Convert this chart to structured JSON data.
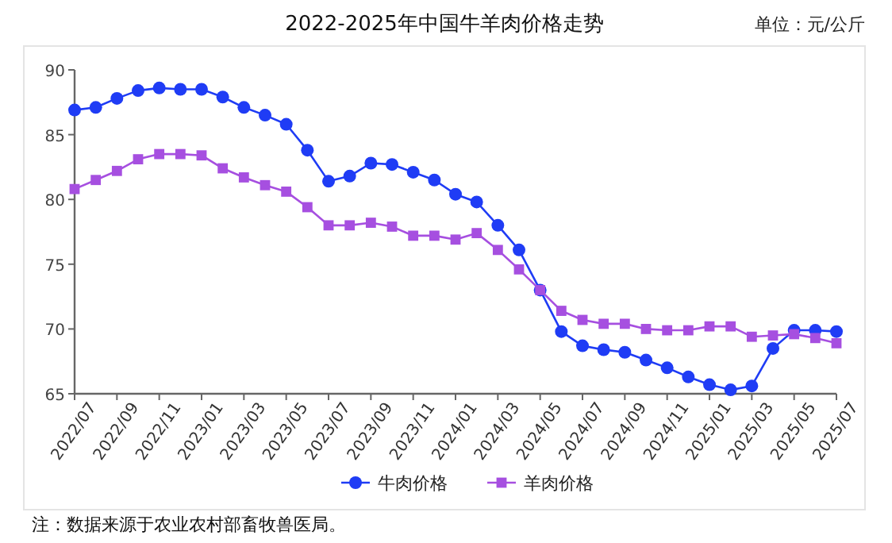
{
  "chart_data": {
    "type": "line",
    "title": "2022-2025年中国牛羊肉价格走势",
    "subtitle": "单位：元/公斤",
    "annotations": [
      "注：数据来源于农业农村部畜牧兽医局。"
    ],
    "categories": [
      "2022/07",
      null,
      "2022/09",
      null,
      "2022/11",
      null,
      "2023/01",
      null,
      "2023/03",
      null,
      "2023/05",
      null,
      "2023/07",
      null,
      "2023/09",
      null,
      "2023/11",
      null,
      "2024/01",
      null,
      "2024/03",
      null,
      "2024/05",
      null,
      "2024/07",
      null,
      "2024/09",
      null,
      "2024/11",
      null,
      "2025/01",
      null,
      "2025/03",
      null,
      "2025/05",
      null,
      "2025/07"
    ],
    "ylim": [
      65,
      90
    ],
    "yticks": [
      65,
      70,
      75,
      80,
      85,
      90
    ],
    "grid": false,
    "legend": "bottom",
    "series": [
      {
        "name": "牛肉价格",
        "color": "#1f3cf5",
        "marker": "circle",
        "values": [
          86.9,
          87.1,
          87.8,
          88.4,
          88.6,
          88.5,
          88.5,
          87.9,
          87.1,
          86.5,
          85.8,
          83.8,
          81.4,
          81.8,
          82.8,
          82.7,
          82.1,
          81.5,
          80.4,
          79.8,
          78.0,
          76.1,
          73.0,
          69.8,
          68.7,
          68.4,
          68.2,
          67.6,
          67.0,
          66.3,
          65.7,
          65.3,
          65.6,
          68.5,
          69.9,
          69.9,
          69.8
        ]
      },
      {
        "name": "羊肉价格",
        "color": "#a64fe0",
        "marker": "square",
        "values": [
          80.8,
          81.5,
          82.2,
          83.1,
          83.5,
          83.5,
          83.4,
          82.4,
          81.7,
          81.1,
          80.6,
          79.4,
          78.0,
          78.0,
          78.2,
          77.9,
          77.2,
          77.2,
          76.9,
          77.4,
          76.1,
          74.6,
          73.0,
          71.4,
          70.7,
          70.4,
          70.4,
          70.0,
          69.9,
          69.9,
          70.2,
          70.2,
          69.4,
          69.5,
          69.6,
          69.3,
          68.9
        ]
      }
    ]
  }
}
